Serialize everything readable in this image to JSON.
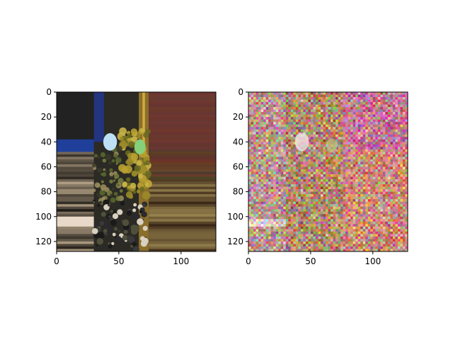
{
  "chart_data": [
    {
      "type": "heatmap",
      "title": "",
      "xlabel": "",
      "ylabel": "",
      "xlim": [
        0,
        128
      ],
      "ylim": [
        128,
        0
      ],
      "xticks": [
        0,
        50,
        100
      ],
      "yticks": [
        0,
        20,
        40,
        60,
        80,
        100,
        120
      ],
      "grid": false,
      "image_content": "original photo, stretched horizontally",
      "palette": [
        "#2a2624",
        "#1f3f9a",
        "#a8862a",
        "#6b3a32",
        "#5a3a30",
        "#cfc8b8",
        "#222430",
        "#7a6a40",
        "#b0d8f0",
        "#8ad878",
        "#3d4030"
      ]
    },
    {
      "type": "heatmap",
      "title": "",
      "xlabel": "",
      "ylabel": "",
      "xlim": [
        0,
        128
      ],
      "ylim": [
        128,
        0
      ],
      "xticks": [
        0,
        50,
        100
      ],
      "yticks": [
        0,
        20,
        40,
        60,
        80,
        100,
        120
      ],
      "grid": false,
      "image_content": "noisy perturbed version of the same photo",
      "palette": [
        "#d8a0b8",
        "#b070a0",
        "#e0c060",
        "#a0c0d0",
        "#f0e8e0",
        "#c080c0",
        "#e8b060",
        "#9098c8"
      ]
    }
  ]
}
